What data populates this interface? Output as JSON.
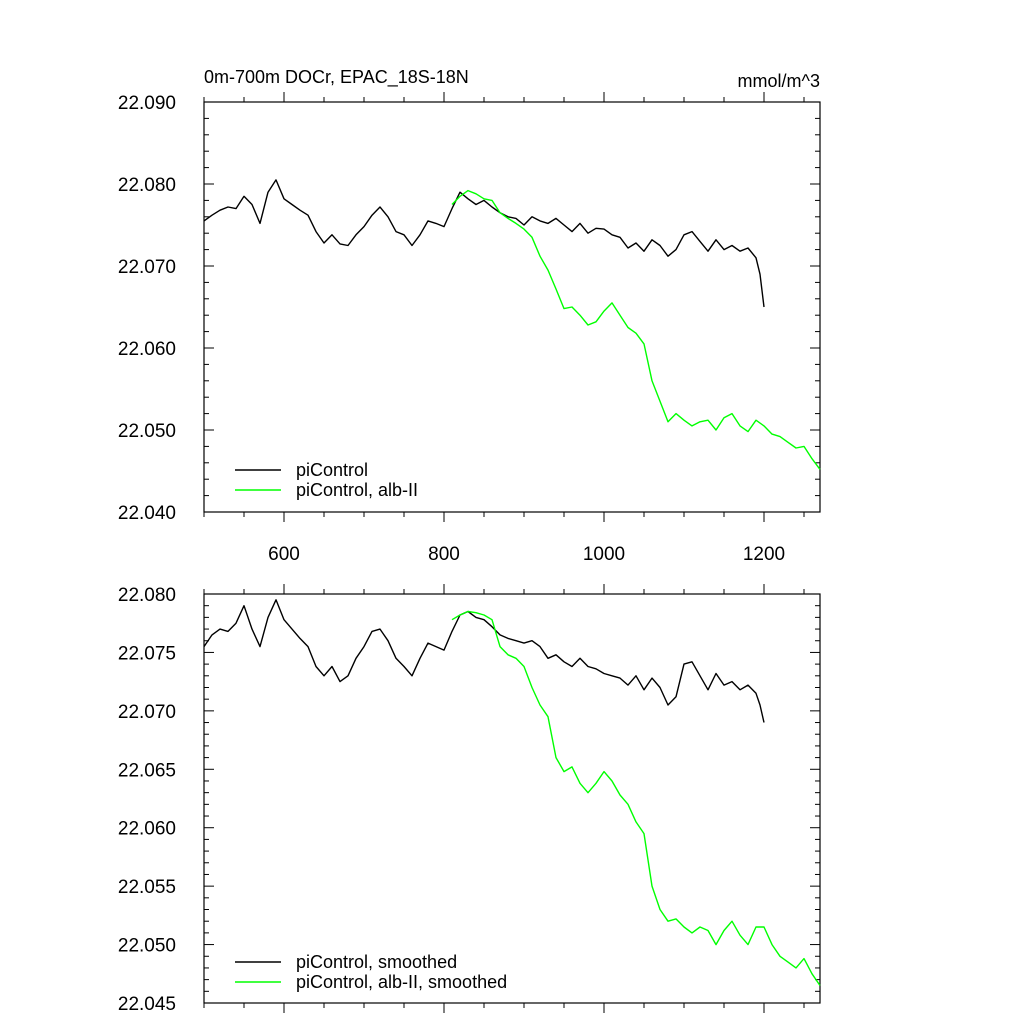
{
  "chart_data": [
    {
      "type": "line",
      "title": "0m-700m DOCr, EPAC_18S-18N",
      "units": "mmol/m^3",
      "xlim": [
        500,
        1270
      ],
      "ylim": [
        22.04,
        22.09
      ],
      "x_ticks": [
        600,
        800,
        1000,
        1200
      ],
      "y_ticks": [
        "22.040",
        "22.050",
        "22.060",
        "22.070",
        "22.080",
        "22.090"
      ],
      "legend_position": "bottom-left",
      "series": [
        {
          "name": "piControl",
          "color": "#000000",
          "x": [
            500,
            510,
            520,
            530,
            540,
            550,
            560,
            570,
            580,
            590,
            600,
            610,
            620,
            630,
            640,
            650,
            660,
            670,
            680,
            690,
            700,
            710,
            720,
            730,
            740,
            750,
            760,
            770,
            780,
            790,
            800,
            810,
            820,
            830,
            840,
            850,
            860,
            870,
            880,
            890,
            900,
            910,
            920,
            930,
            940,
            950,
            960,
            970,
            980,
            990,
            1000,
            1010,
            1020,
            1030,
            1040,
            1050,
            1060,
            1070,
            1080,
            1090,
            1100,
            1110,
            1120,
            1130,
            1140,
            1150,
            1160,
            1170,
            1180,
            1190,
            1195,
            1200
          ],
          "y": [
            22.0755,
            22.0762,
            22.0768,
            22.0772,
            22.077,
            22.0785,
            22.0775,
            22.0752,
            22.079,
            22.0805,
            22.0782,
            22.0775,
            22.0768,
            22.0762,
            22.0742,
            22.0728,
            22.0738,
            22.0727,
            22.0725,
            22.0738,
            22.0748,
            22.0762,
            22.0772,
            22.076,
            22.0742,
            22.0738,
            22.0725,
            22.0738,
            22.0755,
            22.0752,
            22.0748,
            22.077,
            22.079,
            22.0782,
            22.0775,
            22.078,
            22.0772,
            22.0765,
            22.076,
            22.0758,
            22.075,
            22.076,
            22.0755,
            22.0752,
            22.0758,
            22.075,
            22.0742,
            22.0752,
            22.074,
            22.0746,
            22.0745,
            22.0738,
            22.0735,
            22.0722,
            22.0728,
            22.0718,
            22.0732,
            22.0725,
            22.0712,
            22.072,
            22.0738,
            22.0742,
            22.073,
            22.0718,
            22.0732,
            22.072,
            22.0725,
            22.0718,
            22.0722,
            22.071,
            22.069,
            22.065
          ]
        },
        {
          "name": "piControl, alb-II",
          "color": "#00ff00",
          "x": [
            810,
            820,
            830,
            840,
            850,
            860,
            870,
            880,
            890,
            900,
            910,
            920,
            930,
            940,
            950,
            960,
            970,
            980,
            990,
            1000,
            1010,
            1020,
            1030,
            1040,
            1050,
            1060,
            1070,
            1080,
            1090,
            1100,
            1110,
            1120,
            1130,
            1140,
            1150,
            1160,
            1170,
            1180,
            1190,
            1200,
            1210,
            1220,
            1230,
            1240,
            1250,
            1260,
            1270
          ],
          "y": [
            22.0775,
            22.0785,
            22.0792,
            22.0788,
            22.0782,
            22.078,
            22.0765,
            22.0758,
            22.0752,
            22.0745,
            22.0735,
            22.0712,
            22.0695,
            22.0672,
            22.0648,
            22.065,
            22.064,
            22.0628,
            22.0632,
            22.0645,
            22.0655,
            22.064,
            22.0625,
            22.0618,
            22.0605,
            22.056,
            22.0535,
            22.051,
            22.052,
            22.0512,
            22.0505,
            22.051,
            22.0512,
            22.05,
            22.0515,
            22.052,
            22.0505,
            22.0498,
            22.0512,
            22.0505,
            22.0495,
            22.0492,
            22.0485,
            22.0478,
            22.048,
            22.0465,
            22.0452
          ]
        }
      ]
    },
    {
      "type": "line",
      "xlim": [
        500,
        1270
      ],
      "ylim": [
        22.045,
        22.08
      ],
      "x_ticks": [
        600,
        800,
        1000,
        1200
      ],
      "y_ticks": [
        "22.045",
        "22.050",
        "22.055",
        "22.060",
        "22.065",
        "22.070",
        "22.075",
        "22.080"
      ],
      "legend_position": "bottom-left",
      "series": [
        {
          "name": "piControl, smoothed",
          "color": "#000000",
          "x": [
            500,
            510,
            520,
            530,
            540,
            550,
            560,
            570,
            580,
            590,
            600,
            610,
            620,
            630,
            640,
            650,
            660,
            670,
            680,
            690,
            700,
            710,
            720,
            730,
            740,
            750,
            760,
            770,
            780,
            790,
            800,
            810,
            820,
            830,
            840,
            850,
            860,
            870,
            880,
            890,
            900,
            910,
            920,
            930,
            940,
            950,
            960,
            970,
            980,
            990,
            1000,
            1010,
            1020,
            1030,
            1040,
            1050,
            1060,
            1070,
            1080,
            1090,
            1100,
            1110,
            1120,
            1130,
            1140,
            1150,
            1160,
            1170,
            1180,
            1190,
            1195,
            1200
          ],
          "y": [
            22.0755,
            22.0765,
            22.077,
            22.0768,
            22.0775,
            22.079,
            22.077,
            22.0755,
            22.078,
            22.0795,
            22.0778,
            22.077,
            22.0762,
            22.0755,
            22.0738,
            22.073,
            22.0738,
            22.0725,
            22.073,
            22.0745,
            22.0755,
            22.0768,
            22.077,
            22.076,
            22.0745,
            22.0738,
            22.073,
            22.0745,
            22.0758,
            22.0755,
            22.0752,
            22.0768,
            22.0782,
            22.0785,
            22.078,
            22.0778,
            22.0772,
            22.0765,
            22.0762,
            22.076,
            22.0758,
            22.076,
            22.0755,
            22.0745,
            22.0748,
            22.0742,
            22.0738,
            22.0745,
            22.0738,
            22.0736,
            22.0732,
            22.073,
            22.0728,
            22.0722,
            22.073,
            22.0718,
            22.0728,
            22.072,
            22.0705,
            22.0712,
            22.074,
            22.0742,
            22.073,
            22.0718,
            22.0732,
            22.0722,
            22.0725,
            22.0718,
            22.0722,
            22.0715,
            22.0705,
            22.069
          ]
        },
        {
          "name": "piControl, alb-II, smoothed",
          "color": "#00ff00",
          "x": [
            810,
            820,
            830,
            840,
            850,
            860,
            870,
            880,
            890,
            900,
            910,
            920,
            930,
            940,
            950,
            960,
            970,
            980,
            990,
            1000,
            1010,
            1020,
            1030,
            1040,
            1050,
            1060,
            1070,
            1080,
            1090,
            1100,
            1110,
            1120,
            1130,
            1140,
            1150,
            1160,
            1170,
            1180,
            1190,
            1200,
            1210,
            1220,
            1230,
            1240,
            1250,
            1260,
            1270
          ],
          "y": [
            22.0778,
            22.0782,
            22.0785,
            22.0784,
            22.0782,
            22.0778,
            22.0755,
            22.0748,
            22.0745,
            22.0738,
            22.072,
            22.0705,
            22.0695,
            22.066,
            22.0648,
            22.0652,
            22.0638,
            22.063,
            22.0638,
            22.0648,
            22.064,
            22.0628,
            22.062,
            22.0605,
            22.0595,
            22.055,
            22.053,
            22.052,
            22.0522,
            22.0515,
            22.051,
            22.0515,
            22.0512,
            22.05,
            22.0512,
            22.052,
            22.0508,
            22.05,
            22.0515,
            22.0515,
            22.05,
            22.049,
            22.0485,
            22.048,
            22.0488,
            22.0475,
            22.0465
          ]
        }
      ]
    }
  ]
}
